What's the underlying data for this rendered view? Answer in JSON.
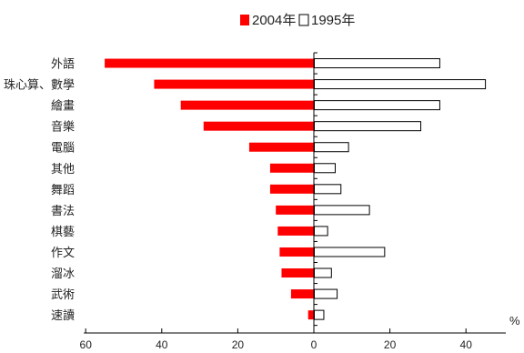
{
  "chart_data": {
    "type": "bar",
    "orientation": "horizontal",
    "title": "",
    "xlabel": "",
    "unit_label": "%",
    "categories": [
      "外語",
      "珠心算、數學",
      "繪畫",
      "音樂",
      "電腦",
      "其他",
      "舞蹈",
      "書法",
      "棋藝",
      "作文",
      "溜冰",
      "武術",
      "速讀"
    ],
    "series": [
      {
        "name": "2004年",
        "color": "#ff0000",
        "direction": "left",
        "values": [
          55,
          42,
          35,
          29,
          17,
          11.5,
          11.5,
          10,
          9.5,
          9,
          8.5,
          6,
          1.5
        ]
      },
      {
        "name": "1995年",
        "color": "#ffffff",
        "direction": "right",
        "values": [
          33,
          45,
          33,
          28,
          9,
          5.5,
          7,
          14.5,
          3.5,
          18.5,
          4.5,
          6,
          2.5
        ]
      }
    ],
    "xlim": [
      -60,
      50
    ],
    "x_ticks": [
      -60,
      -40,
      -20,
      0,
      20,
      40
    ],
    "tick_labels": [
      "60",
      "40",
      "20",
      "0",
      "20",
      "40"
    ],
    "legend_position": "top-center",
    "grid": false
  }
}
